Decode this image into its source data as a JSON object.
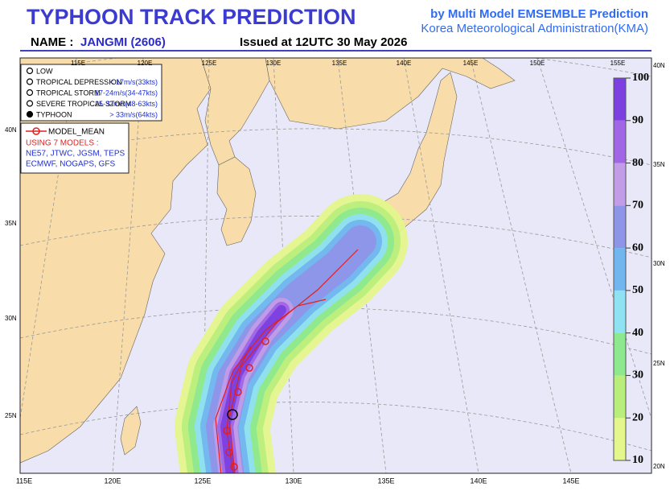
{
  "header": {
    "title": "TYPHOON TRACK PREDICTION",
    "source_line1": "by Multi Model EMSEMBLE Prediction",
    "source_line2": "Korea Meteorological Administration(KMA)",
    "name_label": "NAME :",
    "name_value": "JANGMI (2606)",
    "issued": "Issued at  12UTC 30 May 2026"
  },
  "legend": {
    "intensity": [
      {
        "label": "LOW"
      },
      {
        "label": "TROPICAL DEPRESSION",
        "range": "< 17m/s(33kts)"
      },
      {
        "label": "TROPICAL STORM",
        "range": "17-24m/s(34-47kts)"
      },
      {
        "label": "SEVERE TROPICAL STORM",
        "range": "25-32m/s(48-63kts)"
      },
      {
        "label": "TYPHOON",
        "range": "> 33m/s(64kts)"
      }
    ]
  },
  "models": {
    "mean_label": "MODEL_MEAN",
    "using": "USING 7 MODELS :",
    "list_line1": "NE57, JTWC, JGSM, TEPS",
    "list_line2": "ECMWF, NOGAPS, GFS"
  },
  "colorbar": {
    "ticks": [
      10,
      20,
      30,
      40,
      50,
      60,
      70,
      80,
      90,
      100
    ],
    "colors": [
      "#e4f68c",
      "#b9ee7c",
      "#8ee88e",
      "#8fe2f2",
      "#72b6f0",
      "#8e94e8",
      "#c39ce8",
      "#a066e6",
      "#7c40e0"
    ]
  },
  "map": {
    "lon_top": [
      "115E",
      "120E",
      "125E",
      "130E",
      "135E",
      "140E",
      "145E",
      "150E",
      "155E"
    ],
    "lon_bottom": [
      "115E",
      "120E",
      "125E",
      "130E",
      "135E",
      "140E",
      "145E"
    ],
    "lat_left": [
      "40N",
      "35N",
      "30N",
      "25N"
    ],
    "lat_right": [
      "40N",
      "35N",
      "30N",
      "25N",
      "20N"
    ]
  }
}
